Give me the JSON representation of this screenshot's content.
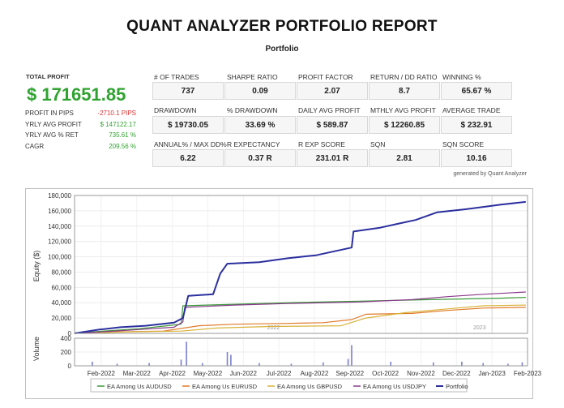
{
  "report": {
    "title": "QUANT ANALYZER PORTFOLIO REPORT",
    "subtitle": "Portfolio",
    "generated_by": "generated by Quant Analyzer"
  },
  "summary": {
    "total_profit_label": "TOTAL PROFIT",
    "total_profit_value": "$ 171651.85",
    "rows": [
      {
        "label": "PROFIT IN PIPS",
        "value": "-2710.1 PIPS",
        "color": "#e03131"
      },
      {
        "label": "YRLY AVG PROFIT",
        "value": "$ 147122.17",
        "color": "#2fa32f"
      },
      {
        "label": "YRLY AVG % RET",
        "value": "735.61 %",
        "color": "#2fa32f"
      },
      {
        "label": "CAGR",
        "value": "209.56 %",
        "color": "#2fa32f"
      }
    ]
  },
  "metrics": [
    {
      "label": "# OF TRADES",
      "value": "737"
    },
    {
      "label": "SHARPE RATIO",
      "value": "0.09"
    },
    {
      "label": "PROFIT FACTOR",
      "value": "2.07"
    },
    {
      "label": "RETURN / DD RATIO",
      "value": "8.7"
    },
    {
      "label": "WINNING %",
      "value": "65.67 %"
    },
    {
      "label": "DRAWDOWN",
      "value": "$ 19730.05"
    },
    {
      "label": "% DRAWDOWN",
      "value": "33.69 %"
    },
    {
      "label": "DAILY AVG PROFIT",
      "value": "$ 589.87"
    },
    {
      "label": "MTHLY AVG PROFIT",
      "value": "$ 12260.85"
    },
    {
      "label": "AVERAGE TRADE",
      "value": "$ 232.91"
    },
    {
      "label": "ANNUAL% / MAX DD%",
      "value": "6.22"
    },
    {
      "label": "R EXPECTANCY",
      "value": "0.37 R"
    },
    {
      "label": "R EXP SCORE",
      "value": "231.01 R"
    },
    {
      "label": "SQN",
      "value": "2.81"
    },
    {
      "label": "SQN SCORE",
      "value": "10.16"
    }
  ],
  "chart_data": {
    "type": "line",
    "ylabel": "Equity ($)",
    "volume_label": "Volume",
    "ylim": [
      0,
      180000
    ],
    "y_ticks": [
      "180,000",
      "160,000",
      "140,000",
      "120,000",
      "100,000",
      "80,000",
      "60,000",
      "40,000",
      "20,000",
      "0"
    ],
    "volume_ticks": [
      "400",
      "200",
      "0"
    ],
    "x_ticks": [
      "Feb-2022",
      "Mar-2022",
      "Apr-2022",
      "May-2022",
      "Jun-2022",
      "Jul-2022",
      "Aug-2022",
      "Sep-2022",
      "Oct-2022",
      "Nov-2022",
      "Dec-2022",
      "Jan-2023",
      "Feb-2023"
    ],
    "year_labels": [
      "2022",
      "2023"
    ],
    "grid": true,
    "legend_position": "bottom",
    "series": [
      {
        "name": "EA Among Us  AUDUSD",
        "color": "#3a9a3a",
        "points": [
          [
            0,
            0
          ],
          [
            0.8,
            3000
          ],
          [
            1.8,
            6000
          ],
          [
            2.6,
            10000
          ],
          [
            3.0,
            12000
          ],
          [
            3.05,
            36000
          ],
          [
            4.5,
            38000
          ],
          [
            6,
            40000
          ],
          [
            8,
            42000
          ],
          [
            10,
            44000
          ],
          [
            12,
            46000
          ],
          [
            12.7,
            47000
          ]
        ]
      },
      {
        "name": "EA Among Us  EURUSD",
        "color": "#e07a2a",
        "points": [
          [
            0,
            0
          ],
          [
            1.2,
            2000
          ],
          [
            2.5,
            3000
          ],
          [
            3.5,
            10000
          ],
          [
            4.5,
            12000
          ],
          [
            6,
            13000
          ],
          [
            7,
            14000
          ],
          [
            7.8,
            18000
          ],
          [
            8.2,
            25000
          ],
          [
            9.5,
            26000
          ],
          [
            10.5,
            30000
          ],
          [
            11.5,
            33000
          ],
          [
            12.7,
            34000
          ]
        ]
      },
      {
        "name": "EA Among Us  GBPUSD",
        "color": "#d9b23a",
        "points": [
          [
            0,
            0
          ],
          [
            1.5,
            2000
          ],
          [
            3,
            3000
          ],
          [
            4,
            7000
          ],
          [
            5.5,
            9000
          ],
          [
            7.5,
            10000
          ],
          [
            8.2,
            20000
          ],
          [
            9.3,
            27000
          ],
          [
            10.5,
            32000
          ],
          [
            11.5,
            36000
          ],
          [
            12.7,
            37000
          ]
        ]
      },
      {
        "name": "EA Among Us  USDJPY",
        "color": "#8a3a8a",
        "points": [
          [
            0,
            0
          ],
          [
            1.5,
            4000
          ],
          [
            2.8,
            8000
          ],
          [
            3.05,
            15000
          ],
          [
            3.1,
            34000
          ],
          [
            4.5,
            37000
          ],
          [
            6,
            39000
          ],
          [
            8,
            41000
          ],
          [
            9.5,
            44000
          ],
          [
            10.5,
            48000
          ],
          [
            11.5,
            51000
          ],
          [
            12.7,
            54000
          ]
        ]
      },
      {
        "name": "Portfolio",
        "color": "#2b2f9e",
        "points": [
          [
            0,
            0
          ],
          [
            0.7,
            5000
          ],
          [
            1.3,
            8000
          ],
          [
            2,
            10000
          ],
          [
            2.8,
            14000
          ],
          [
            3.05,
            20000
          ],
          [
            3.2,
            49000
          ],
          [
            3.9,
            51000
          ],
          [
            4.1,
            78000
          ],
          [
            4.3,
            91000
          ],
          [
            5.2,
            93000
          ],
          [
            6.0,
            98000
          ],
          [
            6.8,
            102000
          ],
          [
            7.8,
            112000
          ],
          [
            7.85,
            133000
          ],
          [
            8.6,
            138000
          ],
          [
            9.1,
            143000
          ],
          [
            9.6,
            148000
          ],
          [
            10.2,
            158000
          ],
          [
            11,
            162000
          ],
          [
            12,
            168000
          ],
          [
            12.7,
            171652
          ]
        ]
      }
    ],
    "volume": [
      [
        0.5,
        60
      ],
      [
        1.2,
        30
      ],
      [
        2.1,
        40
      ],
      [
        3.0,
        90
      ],
      [
        3.15,
        350
      ],
      [
        3.6,
        40
      ],
      [
        4.3,
        200
      ],
      [
        4.4,
        160
      ],
      [
        5.2,
        40
      ],
      [
        6.1,
        30
      ],
      [
        7.0,
        50
      ],
      [
        7.7,
        100
      ],
      [
        7.8,
        300
      ],
      [
        8.9,
        60
      ],
      [
        10.1,
        50
      ],
      [
        10.9,
        60
      ],
      [
        11.5,
        40
      ],
      [
        12.2,
        30
      ],
      [
        12.6,
        50
      ]
    ]
  }
}
